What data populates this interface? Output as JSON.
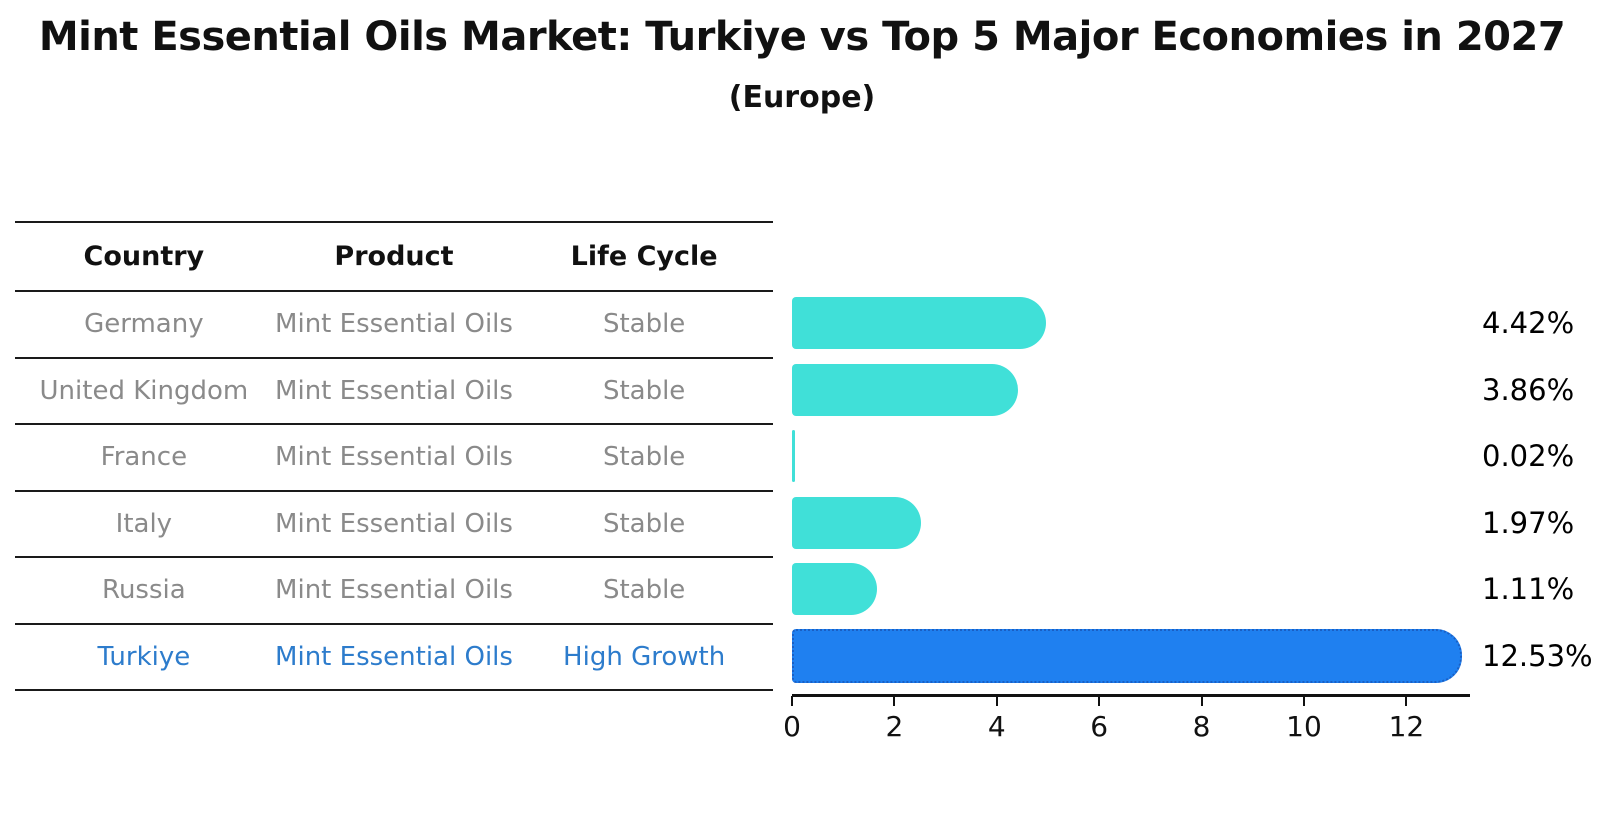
{
  "header": {
    "title": "Mint Essential Oils Market: Turkiye vs Top 5 Major Economies in 2027",
    "subtitle": "(Europe)"
  },
  "table": {
    "columns": [
      "Country",
      "Product",
      "Life Cycle"
    ],
    "rows": [
      {
        "country": "Germany",
        "product": "Mint Essential Oils",
        "life_cycle": "Stable",
        "highlight": false
      },
      {
        "country": "United Kingdom",
        "product": "Mint Essential Oils",
        "life_cycle": "Stable",
        "highlight": false
      },
      {
        "country": "France",
        "product": "Mint Essential Oils",
        "life_cycle": "Stable",
        "highlight": false
      },
      {
        "country": "Italy",
        "product": "Mint Essential Oils",
        "life_cycle": "Stable",
        "highlight": false
      },
      {
        "country": "Russia",
        "product": "Mint Essential Oils",
        "life_cycle": "Stable",
        "highlight": false
      },
      {
        "country": "Turkiye",
        "product": "Mint Essential Oils",
        "life_cycle": "High Growth",
        "highlight": true
      }
    ]
  },
  "chart_data": {
    "type": "bar",
    "orientation": "horizontal",
    "title": "Mint Essential Oils Market: Turkiye vs Top 5 Major Economies in 2027",
    "subtitle": "(Europe)",
    "categories": [
      "Germany",
      "United Kingdom",
      "France",
      "Italy",
      "Russia",
      "Turkiye"
    ],
    "values": [
      4.42,
      3.86,
      0.02,
      1.97,
      1.11,
      12.53
    ],
    "value_labels": [
      "4.42%",
      "3.86%",
      "0.02%",
      "1.97%",
      "1.11%",
      "12.53%"
    ],
    "highlight_category": "Turkiye",
    "x_ticks": [
      0,
      2,
      4,
      6,
      8,
      10,
      12
    ],
    "xlim": [
      0,
      13.2
    ],
    "grid": false,
    "legend": "none",
    "colors": {
      "bar": "#40e0d8",
      "highlight_bar": "#1f80f0",
      "highlight_bar_border": "#1a5fc4",
      "row_text": "#8a8a8a",
      "highlight_text": "#2d7ccc",
      "axis": "#111111"
    }
  }
}
